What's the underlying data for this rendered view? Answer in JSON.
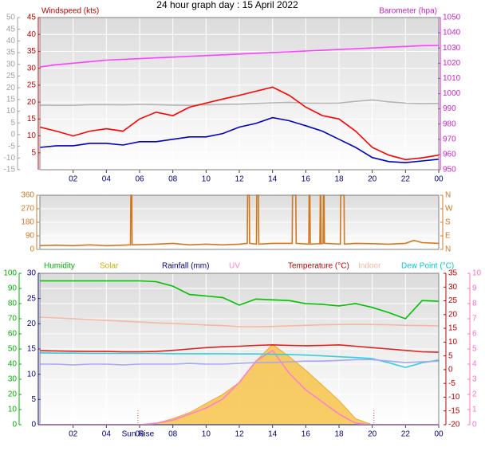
{
  "title": "24 hour graph day : 15 April 2022",
  "chart_data": [
    {
      "type": "line",
      "y_label": "Windspeed (kts)",
      "y2_label": "Barometer (hpa)",
      "x": [
        0,
        1,
        2,
        3,
        4,
        5,
        6,
        7,
        8,
        9,
        10,
        11,
        12,
        13,
        14,
        15,
        16,
        17,
        18,
        19,
        20,
        21,
        22,
        23,
        24
      ],
      "xlim": [
        0,
        24
      ],
      "xticks": [
        {
          "value": 2,
          "label": "02"
        },
        {
          "value": 4,
          "label": "04"
        },
        {
          "value": 6,
          "label": "06"
        },
        {
          "value": 8,
          "label": "08"
        },
        10,
        12,
        14,
        16,
        18,
        20,
        22,
        {
          "value": 24,
          "label": "00"
        }
      ],
      "ylim": [
        0,
        45
      ],
      "yticks": [
        5,
        10,
        15,
        20,
        25,
        30,
        35,
        40,
        45
      ],
      "y2lim": [
        950,
        1050
      ],
      "y2ticks": [
        950,
        960,
        970,
        980,
        990,
        1000,
        1010,
        1020,
        1030,
        1040,
        1050
      ],
      "y3lim": [
        -15,
        50
      ],
      "y3ticks": [
        -15,
        -10,
        -5,
        0,
        5,
        10,
        15,
        20,
        25,
        30,
        35,
        40,
        45,
        50
      ],
      "grid": true,
      "series": [
        {
          "color": "#b4b4b4",
          "axis": "y3",
          "values": [
            12.6,
            12.5,
            12.5,
            12.8,
            12.8,
            12.7,
            12.9,
            12.8,
            12.6,
            12.5,
            12.7,
            12.9,
            13,
            13.3,
            13.6,
            13.8,
            13.5,
            13.4,
            13.5,
            14.2,
            14.8,
            14,
            13.5,
            13.2,
            13.3
          ]
        },
        {
          "color": "#ff0000",
          "values": [
            12.6,
            11.4,
            10,
            11.4,
            12.1,
            11.4,
            15,
            17,
            16,
            18.5,
            19.7,
            20.9,
            22,
            23.2,
            24.4,
            22,
            18.5,
            16,
            15,
            11.4,
            6.6,
            4.3,
            3,
            3.5,
            4.3
          ]
        },
        {
          "color": "#0000c0",
          "values": [
            6.6,
            7.1,
            7.1,
            7.8,
            7.8,
            7.3,
            8.3,
            8.3,
            9,
            9.7,
            9.7,
            10.7,
            12.6,
            13.7,
            15.4,
            14.5,
            13,
            11.4,
            9,
            6.6,
            3.6,
            2.4,
            2.1,
            2.6,
            3.1
          ]
        },
        {
          "color": "#ff40ff",
          "axis": "y2",
          "values": [
            1017.5,
            1019,
            1020,
            1021,
            1022,
            1022.5,
            1023,
            1023.5,
            1024,
            1024.5,
            1025,
            1025.5,
            1026,
            1026.5,
            1027,
            1027.5,
            1028,
            1028.5,
            1029,
            1029.5,
            1030,
            1030.5,
            1031,
            1031.5,
            1031.7
          ]
        }
      ]
    },
    {
      "type": "line",
      "x": [
        0,
        1,
        2,
        3,
        4,
        5,
        5.45,
        5.47,
        5.53,
        5.55,
        7,
        8,
        9,
        10,
        11,
        12,
        12.48,
        12.5,
        12.6,
        12.62,
        13.03,
        13.05,
        13.15,
        13.17,
        14,
        15.18,
        15.2,
        15.4,
        15.42,
        16.18,
        16.2,
        16.25,
        16.27,
        16.85,
        16.87,
        16.9,
        16.92,
        17.04,
        17.06,
        17.1,
        17.12,
        18.08,
        18.1,
        18.3,
        18.32,
        19,
        20,
        21,
        22,
        22.5,
        23,
        24
      ],
      "xlim": [
        0,
        24
      ],
      "ylim": [
        0,
        360
      ],
      "yticks": [
        0,
        90,
        180,
        270,
        360
      ],
      "y2lim": [
        0,
        360
      ],
      "y2ticks": [
        {
          "value": 0,
          "label": "N"
        },
        {
          "value": 90,
          "label": "E"
        },
        {
          "value": 180,
          "label": "S"
        },
        {
          "value": 270,
          "label": "W"
        },
        {
          "value": 360,
          "label": "N"
        }
      ],
      "grid": true,
      "series": [
        {
          "color": "#d07820",
          "values": [
            25,
            28,
            25,
            30,
            25,
            28,
            30,
            360,
            360,
            30,
            35,
            40,
            30,
            35,
            30,
            35,
            40,
            360,
            360,
            40,
            35,
            360,
            360,
            35,
            40,
            40,
            360,
            360,
            40,
            35,
            360,
            360,
            35,
            38,
            360,
            360,
            38,
            40,
            360,
            360,
            40,
            35,
            360,
            360,
            35,
            40,
            38,
            35,
            40,
            60,
            45,
            40
          ]
        }
      ]
    },
    {
      "type": "line",
      "x": [
        0,
        1,
        2,
        3,
        4,
        5,
        6,
        7,
        8,
        9,
        10,
        11,
        12,
        13,
        14,
        15,
        16,
        17,
        18,
        19,
        20,
        21,
        22,
        23,
        24
      ],
      "xlim": [
        0,
        24
      ],
      "xticks": [
        {
          "value": 2,
          "label": "02"
        },
        {
          "value": 4,
          "label": "04"
        },
        {
          "value": 6,
          "label": "06"
        },
        {
          "value": 8,
          "label": "08"
        },
        10,
        12,
        14,
        16,
        18,
        20,
        22,
        {
          "value": 24,
          "label": "00"
        }
      ],
      "ylim": [
        0,
        100
      ],
      "yticks": [
        0,
        10,
        20,
        30,
        40,
        50,
        60,
        70,
        80,
        90,
        100
      ],
      "y3lim": [
        0,
        30
      ],
      "y3ticks": [
        0,
        5,
        10,
        15,
        20,
        25,
        30
      ],
      "y2lim": [
        -20,
        35
      ],
      "y2ticks": [
        -20,
        -15,
        -10,
        -5,
        0,
        5,
        10,
        15,
        20,
        25,
        30,
        35
      ],
      "y4lim": [
        0,
        10
      ],
      "y4ticks": [
        0,
        1,
        2,
        3,
        4,
        5,
        6,
        7,
        8,
        9,
        10
      ],
      "grid": true,
      "annotations": [
        {
          "text": "Sun Rise",
          "x": 5.9
        },
        {
          "x": 20.1
        }
      ],
      "series": [
        {
          "name": "Humidity",
          "color": "#00c000",
          "values": [
            95,
            95,
            95,
            95,
            95,
            95,
            95,
            94.5,
            91.5,
            86,
            85,
            84,
            79,
            83,
            82.5,
            82,
            80,
            79.5,
            78.5,
            80,
            77.5,
            74,
            70,
            82,
            81.5
          ]
        },
        {
          "name": "Solar",
          "color": "#f8c040",
          "fill": true,
          "values": [
            0,
            0,
            0,
            0,
            0,
            0,
            0,
            1,
            4,
            8,
            14,
            20,
            28,
            42,
            53,
            45,
            36,
            26,
            16,
            4,
            0,
            0,
            0,
            0,
            0
          ]
        },
        {
          "name": "Rainfall (mm)",
          "color": "#000080",
          "axis": "y3",
          "values": [
            0,
            0,
            0,
            0,
            0,
            0,
            0,
            0,
            0,
            0,
            0,
            0,
            0,
            0,
            0,
            0,
            0,
            0,
            0,
            0,
            0,
            0,
            0,
            0,
            0
          ]
        },
        {
          "name": "UV",
          "color": "#ff80d0",
          "axis": "y4",
          "values": [
            0,
            0,
            0,
            0,
            0,
            0,
            0,
            0.1,
            0.3,
            0.7,
            1.1,
            1.7,
            2.8,
            4.2,
            4.9,
            3.4,
            2.3,
            1.5,
            0.7,
            0.1,
            0,
            0,
            0,
            0,
            0
          ]
        },
        {
          "name": "Temperature (°C)",
          "color": "#e02020",
          "axis": "y2",
          "values": [
            6.9,
            6.8,
            6.7,
            6.6,
            6.6,
            6.5,
            6.5,
            6.6,
            7,
            7.5,
            8,
            8.3,
            8.5,
            8.8,
            9,
            8.8,
            8.7,
            8.8,
            9,
            8.5,
            8,
            7.5,
            7,
            6.5,
            6.3
          ]
        },
        {
          "name": "Indoor",
          "color": "#f4b8a4",
          "axis": "y2",
          "values": [
            19,
            18.8,
            18.5,
            18.2,
            17.9,
            17.6,
            17.3,
            17,
            16.8,
            16.5,
            16.2,
            16,
            15.6,
            15.6,
            15.7,
            15.9,
            16.1,
            16.3,
            16.4,
            16.5,
            16.4,
            16.3,
            16.1,
            16,
            15.9
          ]
        },
        {
          "name": "Dew Point (°C)",
          "color": "#30d0e0",
          "axis": "y2",
          "values": [
            6.1,
            6,
            6,
            5.9,
            5.9,
            5.9,
            5.9,
            5.9,
            5.8,
            5.8,
            5.8,
            5.8,
            5.7,
            5.7,
            5.6,
            5.5,
            5.3,
            5,
            4.7,
            4.4,
            4,
            2.5,
            0.8,
            2.5,
            3.5
          ]
        },
        {
          "color": "#a8a8f0",
          "values": [
            40,
            40,
            39.5,
            40,
            40,
            39.5,
            40,
            40,
            40,
            40.5,
            40,
            40,
            40.5,
            41,
            41,
            41.5,
            42,
            42,
            42.5,
            43,
            43,
            42,
            41,
            41.5,
            42
          ]
        }
      ]
    }
  ]
}
